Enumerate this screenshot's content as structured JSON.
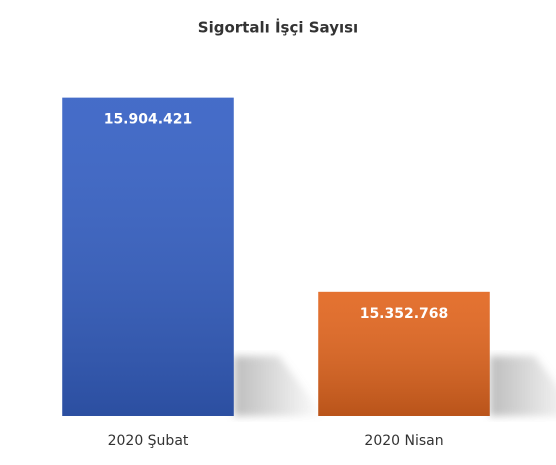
{
  "chart_data": {
    "type": "bar",
    "title": "Sigortalı İşçi Sayısı",
    "categories": [
      "2020 Şubat",
      "2020 Nisan"
    ],
    "values": [
      15904421,
      15352768
    ],
    "value_labels": [
      "15.904.421",
      "15.352.768"
    ],
    "colors": [
      "#3560c4",
      "#e2661f"
    ],
    "ylim": [
      15000000,
      16000000
    ]
  }
}
